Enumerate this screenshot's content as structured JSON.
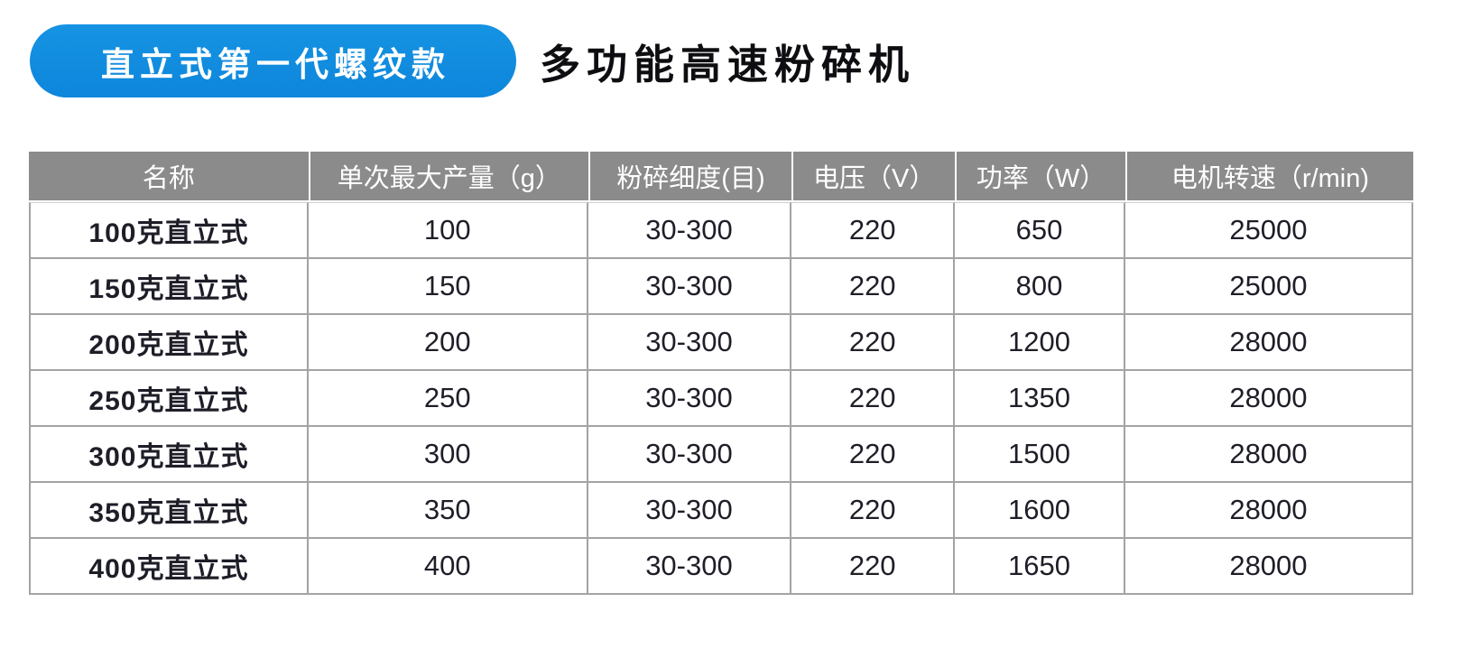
{
  "badge": {
    "label": "直立式第一代螺纹款"
  },
  "title": {
    "text": "多功能高速粉碎机"
  },
  "spec_table": {
    "headers": [
      "名称",
      "单次最大产量（g）",
      "粉碎细度(目)",
      "电压（V）",
      "功率（W）",
      "电机转速（r/min)"
    ],
    "rows": [
      [
        "100克直立式",
        "100",
        "30-300",
        "220",
        "650",
        "25000"
      ],
      [
        "150克直立式",
        "150",
        "30-300",
        "220",
        "800",
        "25000"
      ],
      [
        "200克直立式",
        "200",
        "30-300",
        "220",
        "1200",
        "28000"
      ],
      [
        "250克直立式",
        "250",
        "30-300",
        "220",
        "1350",
        "28000"
      ],
      [
        "300克直立式",
        "300",
        "30-300",
        "220",
        "1500",
        "28000"
      ],
      [
        "350克直立式",
        "350",
        "30-300",
        "220",
        "1600",
        "28000"
      ],
      [
        "400克直立式",
        "400",
        "30-300",
        "220",
        "1650",
        "28000"
      ]
    ]
  },
  "colors": {
    "badge_blue": "#0d86db",
    "badge_blue_top": "#1693e3",
    "header_gray": "#8b8b8b",
    "border_gray": "#a3a3a3",
    "text_dark": "#1e1e28"
  }
}
